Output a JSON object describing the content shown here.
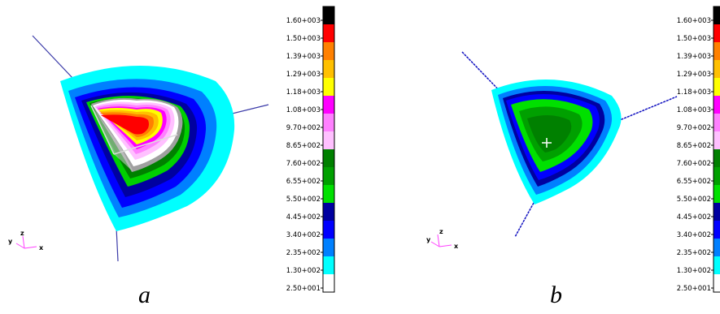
{
  "panels": [
    {
      "caption": "a",
      "axes": {
        "z": "z",
        "y": "y",
        "x": "x"
      },
      "legend": {
        "labels": [
          "1.60+003",
          "1.50+003",
          "1.39+003",
          "1.29+003",
          "1.18+003",
          "1.08+003",
          "9.70+002",
          "8.65+002",
          "7.60+002",
          "6.55+002",
          "5.50+002",
          "4.45+002",
          "3.40+002",
          "2.35+002",
          "1.30+002",
          "2.50+001"
        ],
        "colors": [
          "#000000",
          "#ff0000",
          "#ff8000",
          "#ffc000",
          "#ffff00",
          "#ff00ff",
          "#ff80ff",
          "#ffc0ff",
          "#008000",
          "#00a000",
          "#00e000",
          "#0000a0",
          "#0000ff",
          "#0080ff",
          "#00ffff",
          "#ffffff"
        ]
      }
    },
    {
      "caption": "b",
      "axes": {
        "z": "z",
        "y": "y",
        "x": "x"
      },
      "legend": {
        "labels": [
          "1.60+003",
          "1.50+003",
          "1.39+003",
          "1.29+003",
          "1.18+003",
          "1.08+003",
          "9.70+002",
          "8.65+002",
          "7.60+002",
          "6.55+002",
          "5.50+002",
          "4.45+002",
          "3.40+002",
          "2.35+002",
          "1.30+002",
          "2.50+001"
        ],
        "colors": [
          "#000000",
          "#ff0000",
          "#ff8000",
          "#ffc000",
          "#ffff00",
          "#ff00ff",
          "#ff80ff",
          "#ffc0ff",
          "#008000",
          "#00a000",
          "#00e000",
          "#0000a0",
          "#0000ff",
          "#0080ff",
          "#00ffff",
          "#ffffff"
        ]
      }
    }
  ]
}
